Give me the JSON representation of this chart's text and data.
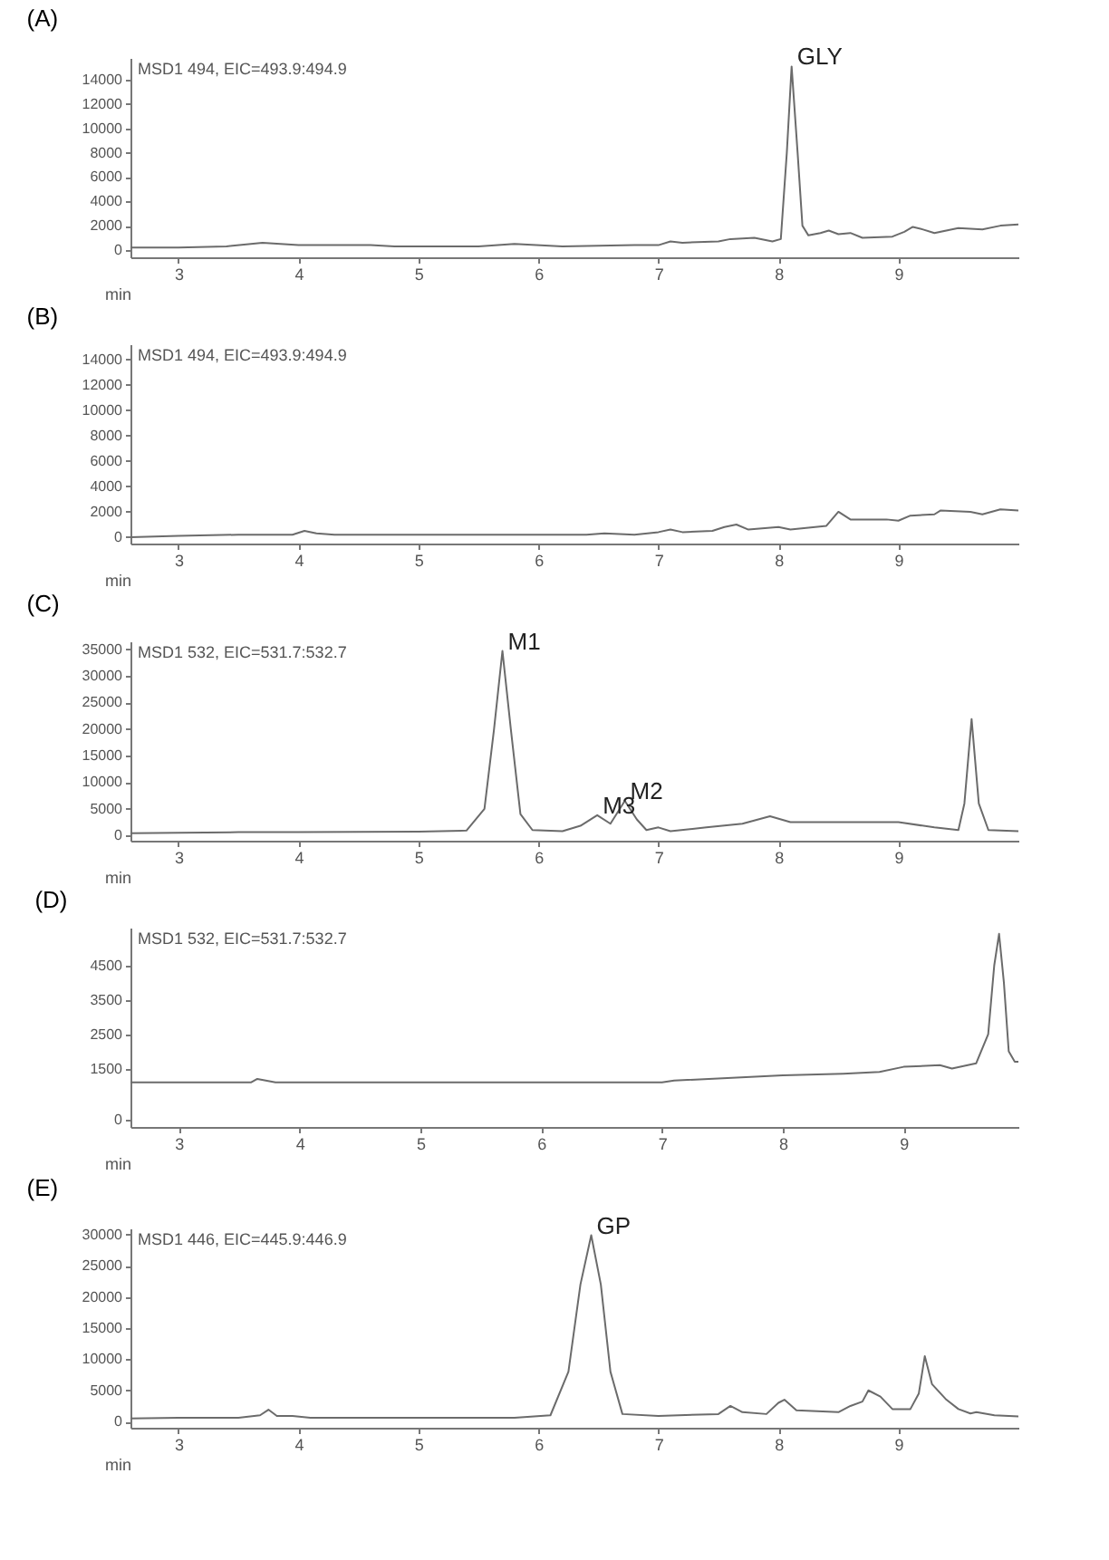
{
  "chart_data": [
    {
      "type": "line",
      "title": "(A)",
      "xlabel": "min",
      "grid": false,
      "xlim": [
        2.6,
        10.0
      ],
      "xticks": [
        3,
        4,
        5,
        6,
        7,
        8,
        9
      ],
      "ylim": [
        -600,
        15800
      ],
      "yticks": [
        0,
        2000,
        4000,
        6000,
        8000,
        10000,
        12000,
        14000
      ],
      "x": [
        2.6,
        3.0,
        3.4,
        3.7,
        4.0,
        4.6,
        4.8,
        5.5,
        5.8,
        6.2,
        6.8,
        7.0,
        7.1,
        7.2,
        7.5,
        7.6,
        7.8,
        7.95,
        8.02,
        8.07,
        8.11,
        8.16,
        8.2,
        8.25,
        8.35,
        8.42,
        8.5,
        8.6,
        8.7,
        8.95,
        9.05,
        9.12,
        9.2,
        9.3,
        9.5,
        9.7,
        9.85,
        10.0
      ],
      "series": [
        {
          "color": "#6b6b6b",
          "values": [
            200,
            200,
            300,
            600,
            400,
            400,
            300,
            300,
            500,
            300,
            400,
            400,
            700,
            600,
            700,
            900,
            1000,
            700,
            900,
            8000,
            15100,
            8000,
            2000,
            1200,
            1400,
            1600,
            1300,
            1400,
            1000,
            1100,
            1500,
            1900,
            1700,
            1400,
            1800,
            1700,
            2000,
            2100
          ]
        }
      ],
      "annotations": [
        "MSD1 494, EIC=493.9:494.9",
        {
          "text": "GLY",
          "x": 8.11,
          "y": 15100
        }
      ]
    },
    {
      "type": "line",
      "title": "(B)",
      "xlabel": "min",
      "grid": false,
      "xlim": [
        2.6,
        10.0
      ],
      "xticks": [
        3,
        4,
        5,
        6,
        7,
        8,
        9
      ],
      "ylim": [
        -500,
        15200
      ],
      "yticks": [
        0,
        2000,
        4000,
        6000,
        8000,
        10000,
        12000,
        14000
      ],
      "x": [
        2.6,
        3.0,
        3.5,
        3.95,
        4.05,
        4.15,
        4.3,
        5.0,
        6.0,
        6.4,
        6.55,
        6.8,
        7.0,
        7.1,
        7.2,
        7.45,
        7.55,
        7.65,
        7.75,
        8.0,
        8.1,
        8.4,
        8.5,
        8.6,
        8.9,
        9.0,
        9.1,
        9.3,
        9.35,
        9.6,
        9.7,
        9.85,
        10.0
      ],
      "series": [
        {
          "color": "#6b6b6b",
          "values": [
            0,
            100,
            200,
            200,
            500,
            300,
            200,
            200,
            200,
            200,
            300,
            200,
            400,
            600,
            400,
            500,
            800,
            1000,
            600,
            800,
            600,
            900,
            2000,
            1400,
            1400,
            1300,
            1700,
            1800,
            2100,
            2000,
            1800,
            2200,
            2100
          ]
        }
      ],
      "annotations": [
        "MSD1 494, EIC=493.9:494.9"
      ]
    },
    {
      "type": "line",
      "title": "(C)",
      "xlabel": "min",
      "grid": false,
      "xlim": [
        2.6,
        10.0
      ],
      "xticks": [
        3,
        4,
        5,
        6,
        7,
        8,
        9
      ],
      "ylim": [
        -1000,
        36500
      ],
      "yticks": [
        0,
        5000,
        10000,
        15000,
        20000,
        25000,
        30000,
        35000
      ],
      "x": [
        2.6,
        3.0,
        3.5,
        4.0,
        5.0,
        5.4,
        5.55,
        5.63,
        5.7,
        5.77,
        5.85,
        5.95,
        6.2,
        6.35,
        6.49,
        6.6,
        6.72,
        6.82,
        6.9,
        7.0,
        7.1,
        7.4,
        7.7,
        7.93,
        8.1,
        8.5,
        9.0,
        9.3,
        9.5,
        9.55,
        9.61,
        9.67,
        9.75,
        10.0
      ],
      "series": [
        {
          "color": "#6b6b6b",
          "values": [
            400,
            500,
            600,
            600,
            700,
            900,
            5000,
            20000,
            34700,
            20000,
            4000,
            1000,
            800,
            1800,
            3800,
            2200,
            6500,
            3000,
            1000,
            1500,
            800,
            1500,
            2200,
            3600,
            2500,
            2500,
            2500,
            1500,
            1000,
            6000,
            21900,
            6000,
            1000,
            800
          ]
        }
      ],
      "annotations": [
        "MSD1 532, EIC=531.7:532.7",
        {
          "text": "M1",
          "x": 5.7,
          "y": 34700
        },
        {
          "text": "M3",
          "x": 6.49,
          "y": 3800
        },
        {
          "text": "M2",
          "x": 6.72,
          "y": 6500
        }
      ]
    },
    {
      "type": "line",
      "title": "(D)",
      "xlabel": "min",
      "grid": false,
      "xlim": [
        2.6,
        9.95
      ],
      "xticks": [
        3,
        4,
        5,
        6,
        7,
        8,
        9
      ],
      "ylim": [
        -200,
        5600
      ],
      "yticks": [
        0,
        1500,
        2500,
        3500,
        4500
      ],
      "x": [
        2.6,
        3.6,
        3.65,
        3.8,
        5.0,
        7.0,
        7.1,
        8.0,
        8.5,
        8.8,
        9.0,
        9.3,
        9.4,
        9.6,
        9.7,
        9.75,
        9.79,
        9.83,
        9.87,
        9.92,
        9.95
      ],
      "series": [
        {
          "color": "#6b6b6b",
          "values": [
            1100,
            1100,
            1200,
            1100,
            1100,
            1100,
            1150,
            1300,
            1350,
            1400,
            1550,
            1600,
            1500,
            1650,
            2500,
            4500,
            5420,
            4000,
            2000,
            1700,
            1700
          ]
        }
      ],
      "annotations": [
        "MSD1 532, EIC=531.7:532.7"
      ]
    },
    {
      "type": "line",
      "title": "(E)",
      "xlabel": "min",
      "grid": false,
      "xlim": [
        2.6,
        10.0
      ],
      "xticks": [
        3,
        4,
        5,
        6,
        7,
        8,
        9
      ],
      "ylim": [
        -1000,
        31000
      ],
      "yticks": [
        0,
        5000,
        10000,
        15000,
        20000,
        25000,
        30000
      ],
      "x": [
        2.6,
        3.0,
        3.5,
        3.68,
        3.75,
        3.82,
        3.95,
        4.1,
        5.0,
        5.8,
        6.1,
        6.25,
        6.35,
        6.44,
        6.52,
        6.6,
        6.7,
        7.0,
        7.5,
        7.6,
        7.7,
        7.9,
        8.0,
        8.05,
        8.15,
        8.5,
        8.6,
        8.7,
        8.75,
        8.85,
        8.95,
        9.1,
        9.17,
        9.22,
        9.28,
        9.4,
        9.5,
        9.6,
        9.65,
        9.8,
        10.0
      ],
      "series": [
        {
          "color": "#6b6b6b",
          "values": [
            500,
            600,
            600,
            1000,
            1900,
            900,
            900,
            600,
            600,
            600,
            1000,
            8000,
            22000,
            29900,
            22000,
            8000,
            1200,
            900,
            1200,
            2500,
            1500,
            1200,
            3000,
            3500,
            1800,
            1500,
            2500,
            3200,
            5000,
            4000,
            2000,
            2000,
            4500,
            10500,
            6000,
            3500,
            2000,
            1300,
            1500,
            1000,
            800
          ]
        }
      ],
      "annotations": [
        "MSD1 446, EIC=445.9:446.9",
        {
          "text": "GP",
          "x": 6.44,
          "y": 29900
        }
      ]
    }
  ]
}
